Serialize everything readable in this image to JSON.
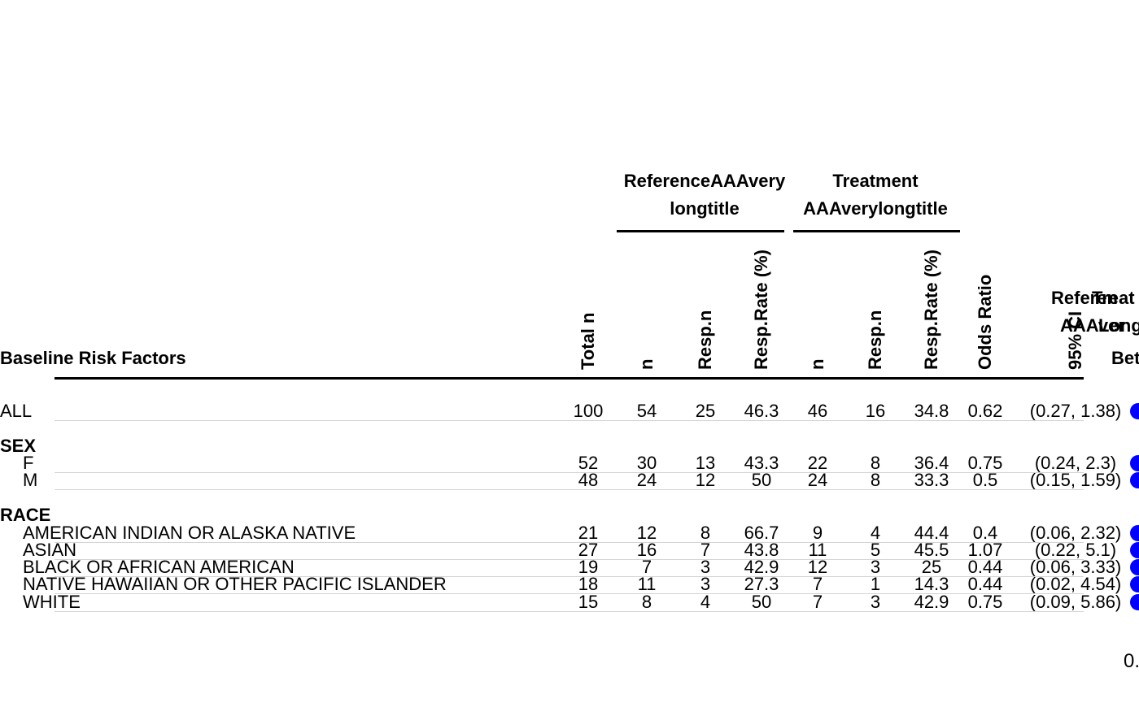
{
  "chart_data": {
    "type": "table",
    "title": "",
    "columns": {
      "row_label": "Baseline Risk Factors",
      "total_n": "Total n",
      "ref_n": "n",
      "ref_resp_n": "Resp.n",
      "ref_resp_rate": "Resp.Rate (%)",
      "trt_n": "n",
      "trt_resp_n": "Resp.n",
      "trt_resp_rate": "Resp.Rate (%)",
      "odds_ratio": "Odds Ratio",
      "ci": "95% CI"
    },
    "span_headers": {
      "reference_line1": "ReferenceAAAvery",
      "reference_line2": "longtitle",
      "treatment_line1": "Treatment",
      "treatment_line2": "AAAverylongtitle"
    },
    "cutoff_headers": {
      "ref_line1": "Referen",
      "ref_line2": "AAAver",
      "trt_line1": "Treat",
      "trt_line2": "Long",
      "better": "Bet"
    },
    "groups": [
      {
        "label": "",
        "rows": [
          {
            "label": "ALL",
            "total_n": "100",
            "ref_n": "54",
            "ref_resp_n": "25",
            "ref_resp_rate": "46.3",
            "trt_n": "46",
            "trt_resp_n": "16",
            "trt_resp_rate": "34.8",
            "odds_ratio": "0.62",
            "ci": "(0.27, 1.38)"
          }
        ]
      },
      {
        "label": "SEX",
        "rows": [
          {
            "label": "F",
            "total_n": "52",
            "ref_n": "30",
            "ref_resp_n": "13",
            "ref_resp_rate": "43.3",
            "trt_n": "22",
            "trt_resp_n": "8",
            "trt_resp_rate": "36.4",
            "odds_ratio": "0.75",
            "ci": "(0.24, 2.3)"
          },
          {
            "label": "M",
            "total_n": "48",
            "ref_n": "24",
            "ref_resp_n": "12",
            "ref_resp_rate": "50",
            "trt_n": "24",
            "trt_resp_n": "8",
            "trt_resp_rate": "33.3",
            "odds_ratio": "0.5",
            "ci": "(0.15, 1.59)"
          }
        ]
      },
      {
        "label": "RACE",
        "rows": [
          {
            "label": "AMERICAN INDIAN OR ALASKA NATIVE",
            "total_n": "21",
            "ref_n": "12",
            "ref_resp_n": "8",
            "ref_resp_rate": "66.7",
            "trt_n": "9",
            "trt_resp_n": "4",
            "trt_resp_rate": "44.4",
            "odds_ratio": "0.4",
            "ci": "(0.06, 2.32)"
          },
          {
            "label": "ASIAN",
            "total_n": "27",
            "ref_n": "16",
            "ref_resp_n": "7",
            "ref_resp_rate": "43.8",
            "trt_n": "11",
            "trt_resp_n": "5",
            "trt_resp_rate": "45.5",
            "odds_ratio": "1.07",
            "ci": "(0.22, 5.1)"
          },
          {
            "label": "BLACK OR AFRICAN AMERICAN",
            "total_n": "19",
            "ref_n": "7",
            "ref_resp_n": "3",
            "ref_resp_rate": "42.9",
            "trt_n": "12",
            "trt_resp_n": "3",
            "trt_resp_rate": "25",
            "odds_ratio": "0.44",
            "ci": "(0.06, 3.33)"
          },
          {
            "label": "NATIVE HAWAIIAN OR OTHER PACIFIC ISLANDER",
            "total_n": "18",
            "ref_n": "11",
            "ref_resp_n": "3",
            "ref_resp_rate": "27.3",
            "trt_n": "7",
            "trt_resp_n": "1",
            "trt_resp_rate": "14.3",
            "odds_ratio": "0.44",
            "ci": "(0.02, 4.54)"
          },
          {
            "label": "WHITE",
            "total_n": "15",
            "ref_n": "8",
            "ref_resp_n": "4",
            "ref_resp_rate": "50",
            "trt_n": "7",
            "trt_resp_n": "3",
            "trt_resp_rate": "42.9",
            "odds_ratio": "0.75",
            "ci": "(0.09, 5.86)"
          }
        ]
      }
    ],
    "marker_color": "#0000ff",
    "axis_tick_label": "0."
  }
}
